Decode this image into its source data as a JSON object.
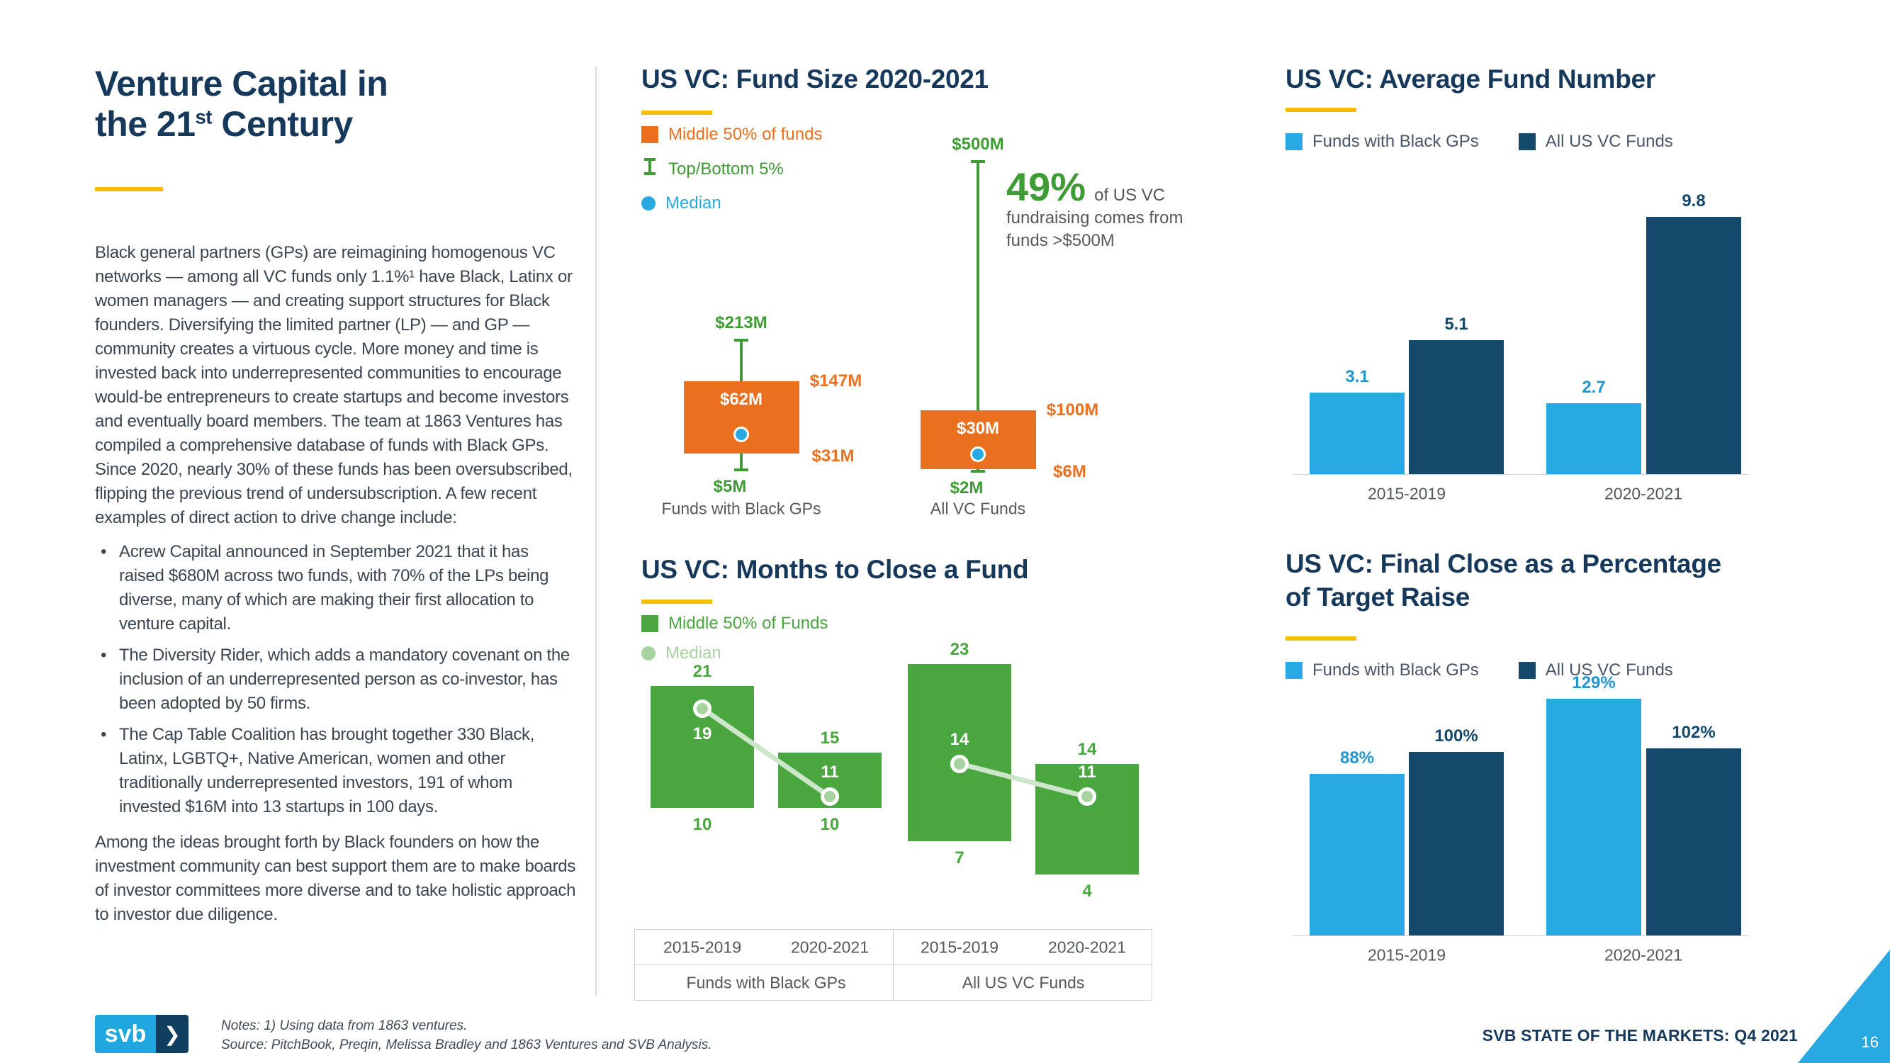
{
  "page": {
    "title": {
      "line1": "Venture Capital in",
      "line2_pre": "the 21",
      "line2_sup": "st",
      "line2_post": " Century"
    },
    "intro": "Black general partners (GPs) are reimagining homogenous VC networks — among all VC funds only 1.1%¹ have Black, Latinx or women managers — and creating support structures for Black founders. Diversifying the limited partner (LP) — and GP — community creates a virtuous cycle. More money and time is invested back into underrepresented communities to encourage would-be entrepreneurs to create startups and become investors and eventually board members. The team at 1863 Ventures has compiled a comprehensive database of funds with Black GPs. Since 2020, nearly 30% of these funds has been oversubscribed, flipping the previous trend of undersubscription. A few recent examples of direct action to drive change include:",
    "bullets": [
      "Acrew Capital announced in September 2021 that it has raised $680M across two funds, with 70% of the LPs being diverse, many of which are making their first allocation to venture capital.",
      "The Diversity Rider, which adds a mandatory covenant on the inclusion of an underrepresented person as co-investor, has been adopted by 50 firms.",
      "The Cap Table Coalition has brought together 330 Black, Latinx, LGBTQ+, Native American, women and other traditionally underrepresented investors, 191 of whom invested $16M into 13 startups in 100 days."
    ],
    "closing": "Among the ideas brought forth by Black founders on how the investment community can best support them are to make boards of investor committees more diverse and to take holistic approach to investor due diligence.",
    "footer": {
      "logo_text": "svb",
      "logo_chevron": "❯",
      "notes_line1": "Notes: 1) Using data from 1863 ventures.",
      "notes_line2": "Source: PitchBook, Preqin, Melissa Bradley and 1863 Ventures and SVB Analysis.",
      "report_label": "SVB STATE OF THE MARKETS: Q4 2021",
      "page_number": "16"
    }
  },
  "colors": {
    "navy": "#16395B",
    "dark_bar": "#14496B",
    "light_blue": "#29A9E2",
    "light_blue_label": "#2496CE",
    "orange": "#E8701F",
    "green": "#3F9C35",
    "months_green": "#4AA63F",
    "pale_green": "#A5D29E",
    "pale_line": "#CDE6C9",
    "yellow": "#F5BE00",
    "grid": "#CBD0D4",
    "muted": "#54585A"
  },
  "chart_data": [
    {
      "id": "fund_size",
      "type": "boxplot",
      "title": "US VC: Fund Size 2020-2021",
      "legend": [
        {
          "label": "Middle 50% of funds",
          "symbol": "box",
          "color": "#E8701F"
        },
        {
          "label": "Top/Bottom 5%",
          "symbol": "whisker",
          "color": "#3F9C35"
        },
        {
          "label": "Median",
          "symbol": "dot",
          "color": "#29A9E2"
        }
      ],
      "unit": "$M",
      "axis": {
        "min": 0,
        "max": 500
      },
      "categories": [
        "Funds with Black GPs",
        "All VC Funds"
      ],
      "series": [
        {
          "whisker_high": 213,
          "box_high": 147,
          "median": 62,
          "box_low": 31,
          "whisker_low": 5,
          "labels": {
            "whisker_high": "$213M",
            "box_high": "$147M",
            "median": "$62M",
            "box_low": "$31M",
            "whisker_low": "$5M"
          }
        },
        {
          "whisker_high": 500,
          "box_high": 100,
          "median": 30,
          "box_low": 6,
          "whisker_low": 2,
          "labels": {
            "whisker_high": "$500M",
            "box_high": "$100M",
            "median": "$30M",
            "box_low": "$6M",
            "whisker_low": "$2M"
          }
        }
      ],
      "annotation": {
        "highlight": "49%",
        "tail": "of US VC",
        "line2": "fundraising comes from",
        "line3": "funds >$500M"
      }
    },
    {
      "id": "months_to_close",
      "type": "boxplot_groups",
      "title": "US VC: Months to Close a Fund",
      "legend": [
        {
          "label": "Middle 50% of Funds",
          "symbol": "box",
          "color": "#4AA63F"
        },
        {
          "label": "Median",
          "symbol": "dot",
          "color": "#A5D29E"
        }
      ],
      "axis": {
        "min": 0,
        "max": 25
      },
      "groups": [
        {
          "label": "Funds with Black GPs",
          "boxes": [
            {
              "period": "2015-2019",
              "high": 21,
              "median": 19,
              "low": 10
            },
            {
              "period": "2020-2021",
              "high": 15,
              "median": 11,
              "low": 10
            }
          ]
        },
        {
          "label": "All US VC Funds",
          "boxes": [
            {
              "period": "2015-2019",
              "high": 23,
              "median": 14,
              "low": 7
            },
            {
              "period": "2020-2021",
              "high": 14,
              "median": 11,
              "low": 4
            }
          ]
        }
      ]
    },
    {
      "id": "avg_fund_number",
      "type": "bar",
      "title": "US VC: Average Fund Number",
      "legend": [
        {
          "label": "Funds with Black GPs",
          "color": "#29A9E2"
        },
        {
          "label": "All US VC Funds",
          "color": "#14496B"
        }
      ],
      "categories": [
        "2015-2019",
        "2020-2021"
      ],
      "series": [
        {
          "name": "Funds with Black GPs",
          "values": [
            3.1,
            2.7
          ]
        },
        {
          "name": "All US VC Funds",
          "values": [
            5.1,
            9.8
          ]
        }
      ],
      "value_labels": [
        [
          "3.1",
          "2.7"
        ],
        [
          "5.1",
          "9.8"
        ]
      ],
      "ylim": [
        0,
        10.5
      ]
    },
    {
      "id": "final_close_pct",
      "type": "bar",
      "title": "US VC: Final Close as a Percentage of Target Raise",
      "title_lines": [
        "US VC: Final Close as a Percentage",
        "of Target Raise"
      ],
      "legend": [
        {
          "label": "Funds with Black GPs",
          "color": "#29A9E2"
        },
        {
          "label": "All US VC Funds",
          "color": "#14496B"
        }
      ],
      "categories": [
        "2015-2019",
        "2020-2021"
      ],
      "series": [
        {
          "name": "Funds with Black GPs",
          "values": [
            88,
            129
          ]
        },
        {
          "name": "All US VC Funds",
          "values": [
            100,
            102
          ]
        }
      ],
      "value_labels": [
        [
          "88%",
          "129%"
        ],
        [
          "100%",
          "102%"
        ]
      ],
      "ylim": [
        0,
        140
      ]
    }
  ]
}
